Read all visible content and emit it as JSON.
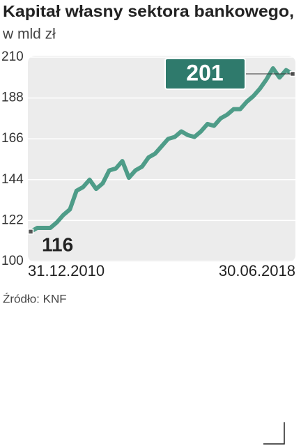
{
  "chart_data": {
    "type": "line",
    "title": "Kapitał własny sektora bankowego,",
    "subtitle": "w mld zł",
    "source": "Źródło: KNF",
    "categories": [
      "31.12.2010",
      null,
      null,
      null,
      null,
      null,
      null,
      null,
      null,
      null,
      null,
      null,
      null,
      null,
      null,
      null,
      null,
      null,
      null,
      null,
      null,
      null,
      null,
      null,
      null,
      null,
      null,
      null,
      null,
      null,
      null,
      null,
      null,
      null,
      null,
      null,
      null,
      null,
      null,
      null,
      "30.06.2018"
    ],
    "series": [
      {
        "name": "Kapitał własny",
        "color": "#4e9c88",
        "values": [
          116,
          118,
          118,
          118,
          121,
          125,
          128,
          138,
          140,
          144,
          139,
          142,
          149,
          150,
          154,
          145,
          149,
          151,
          156,
          158,
          162,
          166,
          167,
          170,
          168,
          167,
          170,
          174,
          173,
          177,
          179,
          182,
          182,
          186,
          189,
          193,
          198,
          204,
          199,
          203,
          201
        ]
      }
    ],
    "ylim": [
      100,
      210
    ],
    "yticks": [
      100,
      122,
      144,
      166,
      188,
      210
    ],
    "grid": true
  }
}
